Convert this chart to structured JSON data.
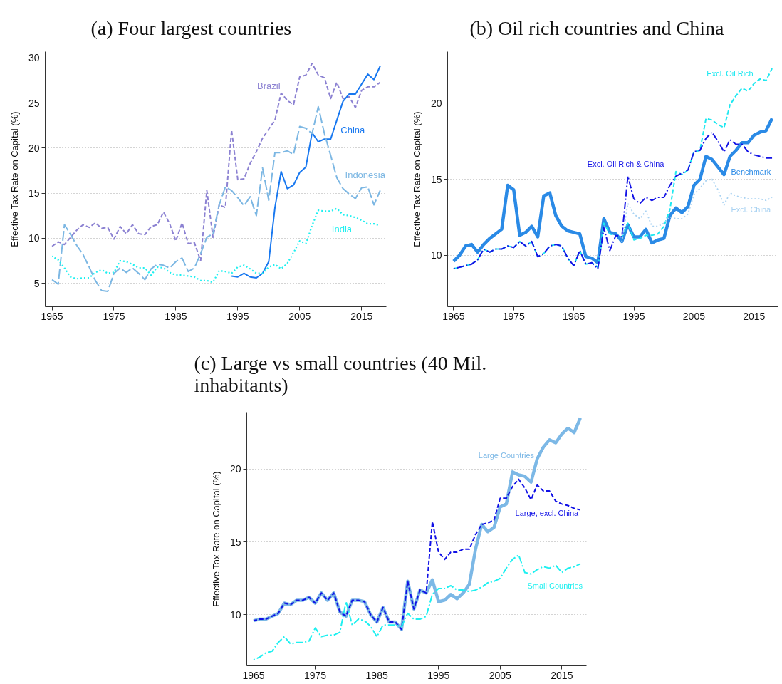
{
  "chart_data": [
    {
      "type": "line",
      "title": "(a) Four largest countries",
      "ylabel": "Effective Tax Rate on Capital (%)",
      "x": [
        1965,
        1966,
        1967,
        1968,
        1969,
        1970,
        1971,
        1972,
        1973,
        1974,
        1975,
        1976,
        1977,
        1978,
        1979,
        1980,
        1981,
        1982,
        1983,
        1984,
        1985,
        1986,
        1987,
        1988,
        1989,
        1990,
        1991,
        1992,
        1993,
        1994,
        1995,
        1996,
        1997,
        1998,
        1999,
        2000,
        2001,
        2002,
        2003,
        2004,
        2005,
        2006,
        2007,
        2008,
        2009,
        2010,
        2011,
        2012,
        2013,
        2014,
        2015,
        2016,
        2017,
        2018
      ],
      "xlim": [
        1963.9,
        2019.0
      ],
      "xticks": [
        1965,
        1975,
        1985,
        1995,
        2005,
        2015
      ],
      "ylim": [
        2.4,
        30.7
      ],
      "yticks": [
        5,
        10,
        15,
        20,
        25,
        30
      ],
      "grid": "y",
      "series": [
        {
          "name": "Brazil",
          "color": "#8c82d2",
          "line_style": "dashed",
          "values": [
            9.1,
            9.6,
            9.3,
            10.1,
            10.9,
            11.5,
            11.2,
            11.7,
            11.1,
            11.2,
            9.9,
            11.3,
            10.5,
            11.5,
            10.5,
            10.4,
            11.3,
            11.5,
            12.9,
            11.6,
            9.7,
            11.7,
            9.4,
            9.5,
            7.5,
            15.3,
            10.1,
            13.7,
            13.4,
            22.0,
            16.5,
            16.6,
            18.3,
            19.6,
            21.1,
            22.1,
            23.1,
            26.1,
            25.3,
            24.8,
            27.9,
            28.1,
            29.4,
            28.1,
            27.8,
            25.5,
            27.3,
            25.5,
            25.7,
            24.5,
            26.4,
            26.8,
            26.8,
            27.3
          ]
        },
        {
          "name": "China",
          "color": "#1878f0",
          "line_style": "solid",
          "values": [
            null,
            null,
            null,
            null,
            null,
            null,
            null,
            null,
            null,
            null,
            null,
            null,
            null,
            null,
            null,
            null,
            null,
            null,
            null,
            null,
            null,
            null,
            null,
            null,
            null,
            null,
            null,
            null,
            null,
            5.8,
            5.7,
            6.1,
            5.7,
            5.6,
            6.1,
            7.4,
            13.4,
            17.4,
            15.5,
            15.9,
            17.3,
            17.9,
            21.7,
            20.7,
            21.0,
            21.0,
            23.1,
            25.2,
            26.0,
            26.0,
            27.1,
            28.2,
            27.6,
            29.1
          ]
        },
        {
          "name": "Indonesia",
          "color": "#7cb7e3",
          "line_style": "longdash",
          "values": [
            5.4,
            4.9,
            11.5,
            10.4,
            9.2,
            8.2,
            6.8,
            5.3,
            4.2,
            4.1,
            6.1,
            6.7,
            6.2,
            6.7,
            6.1,
            5.4,
            6.6,
            7.1,
            7.0,
            6.7,
            7.4,
            7.8,
            6.3,
            6.7,
            8.3,
            10.1,
            10.5,
            13.7,
            15.7,
            15.3,
            14.5,
            13.6,
            14.6,
            12.5,
            17.8,
            14.2,
            19.5,
            19.5,
            19.7,
            19.3,
            22.4,
            22.2,
            21.6,
            24.6,
            21.6,
            19.2,
            16.7,
            15.5,
            14.9,
            14.4,
            15.6,
            15.7,
            13.7,
            15.3
          ]
        },
        {
          "name": "India",
          "color": "#1ef0f0",
          "line_style": "dotted",
          "values": [
            8.0,
            7.6,
            6.7,
            5.7,
            5.5,
            5.6,
            5.6,
            6.2,
            6.5,
            6.1,
            6.2,
            7.5,
            7.4,
            7.1,
            6.7,
            6.7,
            5.9,
            6.8,
            6.7,
            6.2,
            5.9,
            5.9,
            5.8,
            5.7,
            5.3,
            5.3,
            5.1,
            6.4,
            6.3,
            6.1,
            6.8,
            7.0,
            6.6,
            6.1,
            6.1,
            6.8,
            7.1,
            6.6,
            7.2,
            8.4,
            9.7,
            9.4,
            11.4,
            13.1,
            13.0,
            13.0,
            13.3,
            12.6,
            12.5,
            12.3,
            12.0,
            11.6,
            11.6,
            11.4
          ]
        }
      ]
    },
    {
      "type": "line",
      "title": "(b) Oil rich countries and China",
      "ylabel": "Effective Tax Rate on Capital (%)",
      "x": [
        1965,
        1966,
        1967,
        1968,
        1969,
        1970,
        1971,
        1972,
        1973,
        1974,
        1975,
        1976,
        1977,
        1978,
        1979,
        1980,
        1981,
        1982,
        1983,
        1984,
        1985,
        1986,
        1987,
        1988,
        1989,
        1990,
        1991,
        1992,
        1993,
        1994,
        1995,
        1996,
        1997,
        1998,
        1999,
        2000,
        2001,
        2002,
        2003,
        2004,
        2005,
        2006,
        2007,
        2008,
        2009,
        2010,
        2011,
        2012,
        2013,
        2014,
        2015,
        2016,
        2017,
        2018
      ],
      "xlim": [
        1964.0,
        2019.0
      ],
      "xticks": [
        1965,
        1975,
        1985,
        1995,
        2005,
        2015
      ],
      "ylim": [
        6.6,
        23.4
      ],
      "yticks": [
        10,
        15,
        20
      ],
      "grid": "y",
      "series": [
        {
          "name": "Benchmark",
          "color": "#2a8ae6",
          "line_style": "solid",
          "values": [
            9.6,
            10.0,
            10.6,
            10.7,
            10.2,
            10.7,
            11.1,
            11.4,
            11.7,
            14.6,
            14.3,
            11.3,
            11.5,
            11.9,
            11.2,
            13.9,
            14.1,
            12.6,
            11.9,
            11.6,
            11.5,
            11.4,
            9.9,
            9.8,
            9.5,
            12.4,
            11.5,
            11.4,
            10.9,
            12.0,
            11.2,
            11.2,
            11.7,
            10.8,
            11.0,
            11.1,
            12.6,
            13.1,
            12.8,
            13.2,
            14.6,
            15.0,
            16.5,
            16.3,
            15.8,
            15.3,
            16.5,
            16.9,
            17.4,
            17.4,
            17.9,
            18.1,
            18.2,
            19.0
          ]
        },
        {
          "name": "Excl. Oil Rich",
          "color": "#1ee8f0",
          "line_style": "dashed",
          "values": [
            9.1,
            9.2,
            9.3,
            9.4,
            9.7,
            10.4,
            10.2,
            10.4,
            10.4,
            10.6,
            10.5,
            10.9,
            10.6,
            10.9,
            9.9,
            10.1,
            10.6,
            10.7,
            10.6,
            9.8,
            9.3,
            10.3,
            9.4,
            9.5,
            9.2,
            12.1,
            11.4,
            11.3,
            11.2,
            12.1,
            11.0,
            11.1,
            11.3,
            11.3,
            11.4,
            11.9,
            13.0,
            15.5,
            15.3,
            15.6,
            16.8,
            16.9,
            19.0,
            18.9,
            18.6,
            18.4,
            19.9,
            20.5,
            21.0,
            20.8,
            21.3,
            21.6,
            21.5,
            22.3
          ]
        },
        {
          "name": "Excl. Oil Rich & China",
          "color": "#1414e6",
          "line_style": "dashdot",
          "values": [
            9.1,
            9.2,
            9.3,
            9.4,
            9.7,
            10.4,
            10.2,
            10.4,
            10.4,
            10.6,
            10.5,
            10.9,
            10.6,
            10.9,
            9.9,
            10.1,
            10.6,
            10.7,
            10.6,
            9.8,
            9.3,
            10.3,
            9.4,
            9.5,
            9.1,
            11.8,
            10.3,
            11.3,
            11.2,
            15.2,
            13.7,
            13.4,
            13.8,
            13.6,
            13.8,
            13.8,
            14.6,
            15.2,
            15.4,
            15.6,
            16.8,
            16.9,
            17.7,
            18.1,
            17.5,
            16.8,
            17.6,
            17.3,
            17.3,
            16.8,
            16.6,
            16.5,
            16.4,
            16.4
          ]
        },
        {
          "name": "Excl. China",
          "color": "#a8d2f2",
          "line_style": "dotted",
          "values": [
            null,
            null,
            null,
            null,
            null,
            null,
            null,
            null,
            null,
            null,
            null,
            null,
            null,
            null,
            null,
            null,
            null,
            null,
            null,
            null,
            null,
            null,
            null,
            null,
            null,
            null,
            null,
            null,
            10.9,
            13.4,
            12.7,
            12.4,
            12.9,
            11.9,
            11.9,
            12.1,
            12.5,
            12.4,
            12.4,
            12.7,
            14.0,
            14.4,
            14.9,
            15.0,
            14.3,
            13.3,
            14.1,
            13.9,
            13.8,
            13.7,
            13.7,
            13.7,
            13.6,
            13.8
          ]
        }
      ]
    },
    {
      "type": "line",
      "title": "(c) Large vs small countries (40 Mil. inhabitants)",
      "ylabel": "Effective Tax Rate on Capital (%)",
      "x": [
        1965,
        1966,
        1967,
        1968,
        1969,
        1970,
        1971,
        1972,
        1973,
        1974,
        1975,
        1976,
        1977,
        1978,
        1979,
        1980,
        1981,
        1982,
        1983,
        1984,
        1985,
        1986,
        1987,
        1988,
        1989,
        1990,
        1991,
        1992,
        1993,
        1994,
        1995,
        1996,
        1997,
        1998,
        1999,
        2000,
        2001,
        2002,
        2003,
        2004,
        2005,
        2006,
        2007,
        2008,
        2009,
        2010,
        2011,
        2012,
        2013,
        2014,
        2015,
        2016,
        2017,
        2018
      ],
      "xlim": [
        1963.9,
        2019.0
      ],
      "xticks": [
        1965,
        1975,
        1985,
        1995,
        2005,
        2015
      ],
      "ylim": [
        6.5,
        23.9
      ],
      "yticks": [
        10,
        15,
        20
      ],
      "grid": "y",
      "series": [
        {
          "name": "Large Countries",
          "color": "#7cb8e6",
          "line_style": "solid",
          "values": [
            9.6,
            9.7,
            9.7,
            9.9,
            10.1,
            10.8,
            10.7,
            11.0,
            11.0,
            11.2,
            10.8,
            11.5,
            11.0,
            11.5,
            10.2,
            9.9,
            11.0,
            11.0,
            10.9,
            10.0,
            9.5,
            10.5,
            9.5,
            9.5,
            9.0,
            12.3,
            10.4,
            11.7,
            11.5,
            12.4,
            10.9,
            11.0,
            11.4,
            11.1,
            11.5,
            12.1,
            14.5,
            16.2,
            15.7,
            16.0,
            17.4,
            17.6,
            19.8,
            19.6,
            19.5,
            19.1,
            20.7,
            21.5,
            22.0,
            21.8,
            22.4,
            22.8,
            22.5,
            23.5
          ]
        },
        {
          "name": "Large, excl. China",
          "color": "#1010e6",
          "line_style": "dashed",
          "values": [
            9.6,
            9.7,
            9.7,
            9.9,
            10.1,
            10.8,
            10.7,
            11.0,
            11.0,
            11.2,
            10.8,
            11.5,
            11.0,
            11.5,
            10.2,
            9.9,
            11.0,
            11.0,
            10.9,
            10.0,
            9.5,
            10.5,
            9.5,
            9.5,
            9.0,
            12.3,
            10.4,
            11.7,
            11.5,
            16.4,
            14.3,
            13.8,
            14.3,
            14.3,
            14.5,
            14.5,
            15.5,
            16.2,
            16.3,
            16.5,
            18.0,
            18.0,
            18.8,
            19.3,
            18.7,
            17.9,
            18.9,
            18.5,
            18.5,
            17.8,
            17.6,
            17.5,
            17.3,
            17.2
          ]
        },
        {
          "name": "Small Countries",
          "color": "#1ef0f0",
          "line_style": "dashdot",
          "values": [
            6.9,
            7.1,
            7.4,
            7.5,
            8.1,
            8.5,
            8.0,
            8.1,
            8.1,
            8.2,
            9.1,
            8.5,
            8.6,
            8.6,
            8.8,
            10.9,
            9.3,
            9.7,
            9.6,
            9.2,
            8.5,
            9.3,
            9.3,
            9.3,
            9.2,
            10.1,
            9.7,
            9.7,
            9.9,
            11.4,
            11.8,
            11.8,
            12.0,
            11.7,
            11.7,
            11.6,
            11.7,
            11.9,
            12.2,
            12.3,
            12.5,
            13.2,
            13.8,
            14.1,
            12.9,
            12.8,
            13.1,
            13.3,
            13.2,
            13.4,
            12.9,
            13.2,
            13.3,
            13.5
          ]
        }
      ]
    }
  ]
}
